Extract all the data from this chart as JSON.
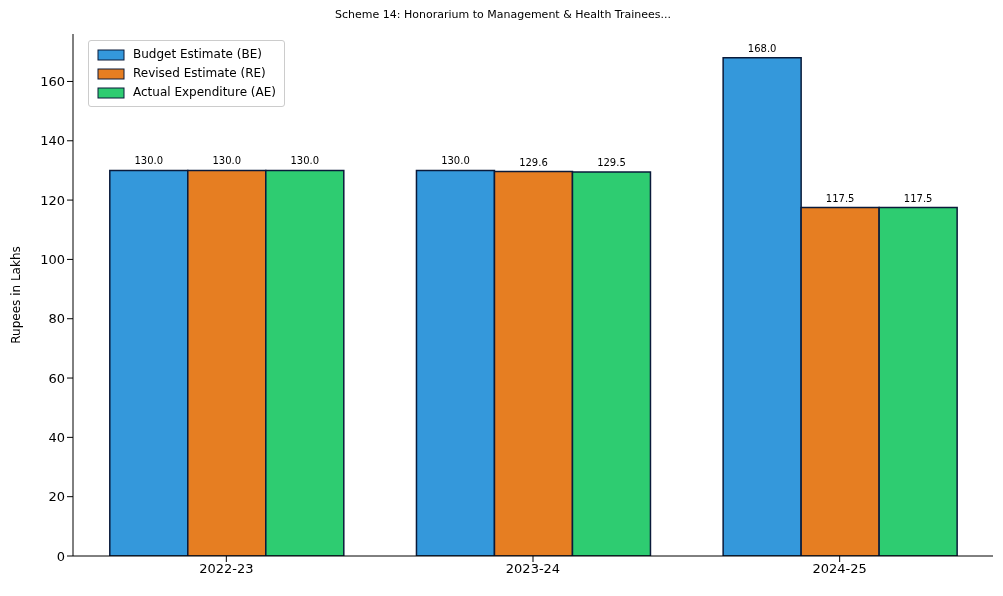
{
  "chart_data": {
    "type": "bar",
    "title": "Scheme 14: Honorarium to Management & Health Trainees...",
    "ylabel": "Rupees in Lakhs",
    "categories": [
      "2022-23",
      "2023-24",
      "2024-25"
    ],
    "series": [
      {
        "name": "Budget Estimate (BE)",
        "color": "#3498db",
        "values": [
          130.0,
          130.0,
          168.0
        ],
        "value_labels": [
          "130.0",
          "130.0",
          "168.0"
        ]
      },
      {
        "name": "Revised Estimate (RE)",
        "color": "#e67e22",
        "values": [
          130.0,
          129.6,
          117.5
        ],
        "value_labels": [
          "130.0",
          "129.6",
          "117.5"
        ]
      },
      {
        "name": "Actual Expenditure (AE)",
        "color": "#2ecc71",
        "values": [
          130.0,
          129.5,
          117.5
        ],
        "value_labels": [
          "130.0",
          "129.5",
          "117.5"
        ]
      }
    ],
    "ylim": [
      0,
      176
    ],
    "yticks": [
      0,
      20,
      40,
      60,
      80,
      100,
      120,
      140,
      160
    ],
    "grid": false,
    "legend": "top left"
  }
}
